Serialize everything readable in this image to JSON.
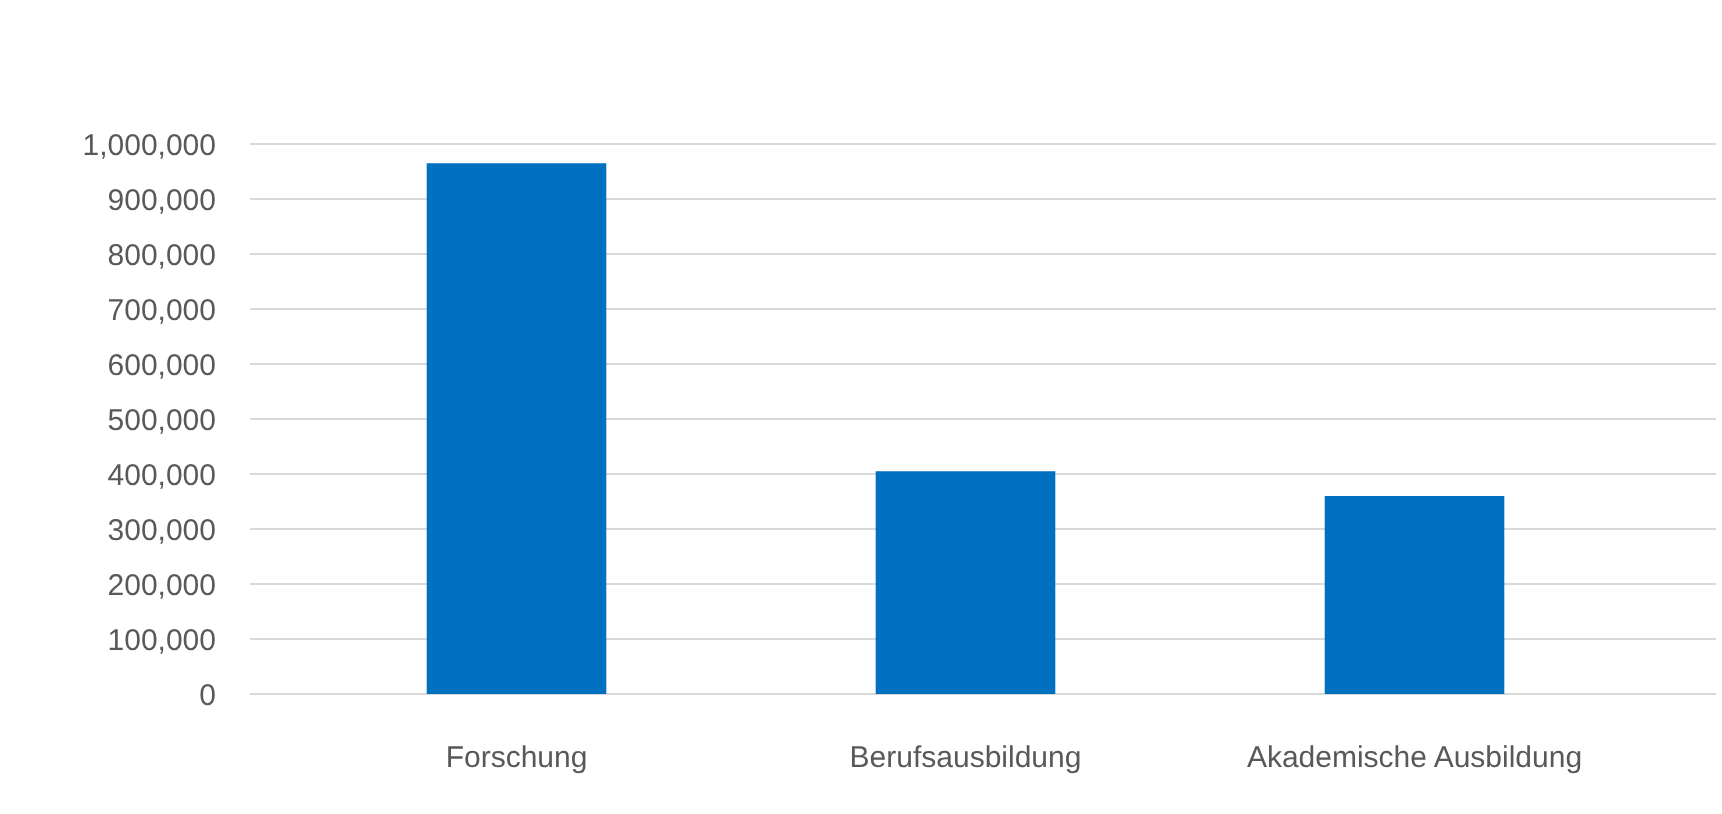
{
  "chart_data": {
    "type": "bar",
    "categories": [
      "Forschung",
      "Berufsausbildung",
      "Akademische Ausbildung"
    ],
    "values": [
      965000,
      405000,
      360000
    ],
    "color": "#0070c0",
    "ylim": [
      0,
      1000000
    ],
    "yticks": [
      0,
      {
        "value": 100000,
        "label": "100,000"
      },
      {
        "value": 200000,
        "label": "200,000"
      },
      {
        "value": 300000,
        "label": "300,000"
      },
      {
        "value": 400000,
        "label": "400,000"
      },
      {
        "value": 500000,
        "label": "500,000"
      },
      {
        "value": 600000,
        "label": "600,000"
      },
      {
        "value": 700000,
        "label": "700,000"
      },
      {
        "value": 800000,
        "label": "800,000"
      },
      {
        "value": 900000,
        "label": "900,000"
      },
      {
        "value": 1000000,
        "label": "1,000,000"
      }
    ],
    "grid": "y"
  }
}
